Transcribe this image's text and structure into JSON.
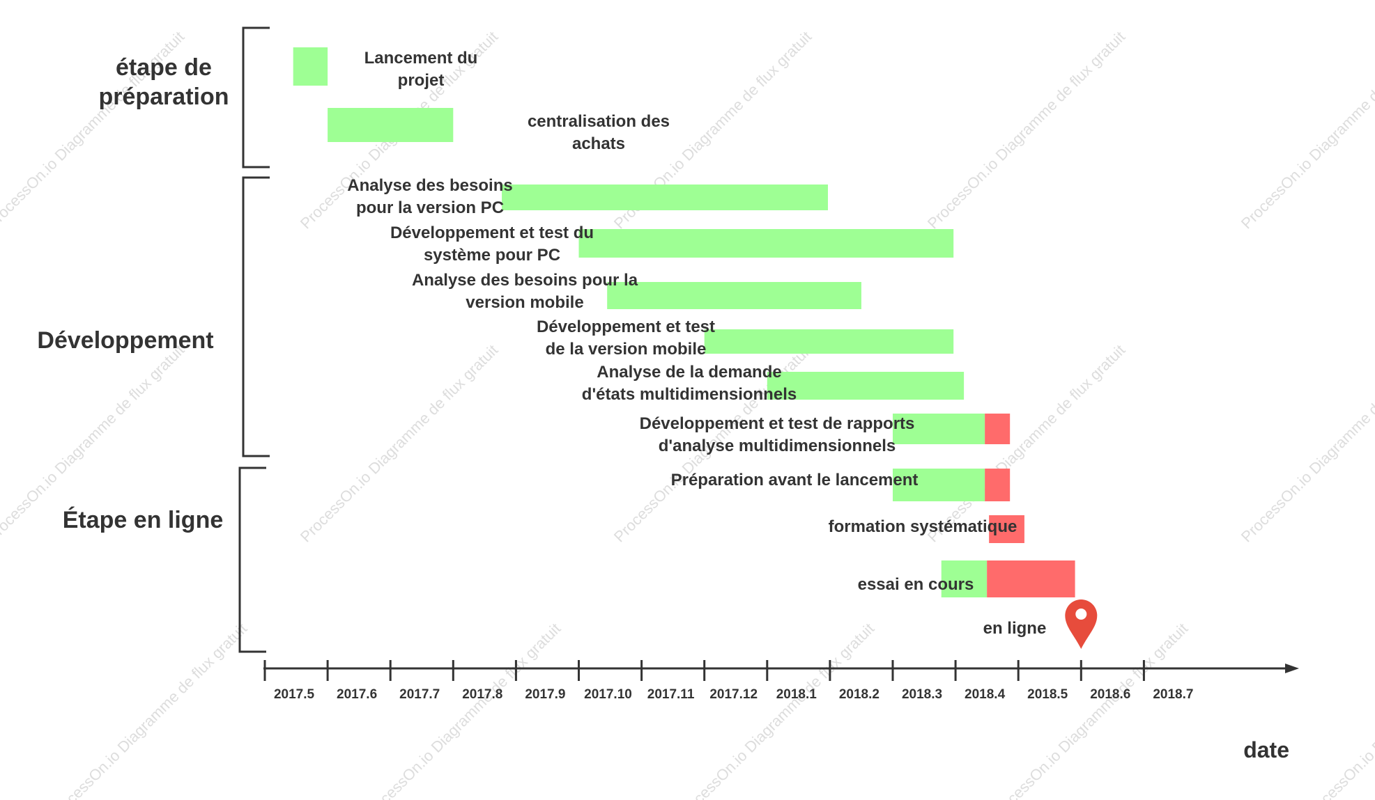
{
  "chart_data": {
    "type": "gantt",
    "xlabel": "date",
    "x_ticks": [
      "2017.5",
      "2017.6",
      "2017.7",
      "2017.8",
      "2017.9",
      "2017.10",
      "2017.11",
      "2017.12",
      "2018.1",
      "2018.2",
      "2018.3",
      "2018.4",
      "2018.5",
      "2018.6",
      "2018.7"
    ],
    "phases": [
      {
        "label": "étape de\npréparation"
      },
      {
        "label": "Développement"
      },
      {
        "label": "Étape en ligne"
      }
    ],
    "tasks": [
      {
        "label": "Lancement du\nprojet",
        "start": "2017-05-15",
        "end": "2017-06-01",
        "delay_end": null
      },
      {
        "label": "centralisation des\nachats",
        "start": "2017-06-01",
        "end": "2017-08-01",
        "delay_end": null
      },
      {
        "label": "Analyse des besoins\npour la version PC",
        "start": "2017-08-25",
        "end": "2018-01-31",
        "delay_end": null
      },
      {
        "label": "Développement et test du\nsystème pour PC",
        "start": "2017-10-01",
        "end": "2018-03-31",
        "delay_end": null
      },
      {
        "label": "Analyse des besoins pour la\nversion mobile",
        "start": "2017-10-15",
        "end": "2018-02-15",
        "delay_end": null
      },
      {
        "label": "Développement et test\nde la version mobile",
        "start": "2017-12-01",
        "end": "2018-03-31",
        "delay_end": null
      },
      {
        "label": "Analyse de la demande\nd'états multidimensionnels",
        "start": "2018-01-01",
        "end": "2018-04-05",
        "delay_end": null
      },
      {
        "label": "Développement et test de rapports\nd'analyse multidimensionnels",
        "start": "2018-03-01",
        "end": "2018-04-15",
        "delay_end": "2018-04-27"
      },
      {
        "label": "Préparation avant le lancement",
        "start": "2018-03-01",
        "end": "2018-04-15",
        "delay_end": "2018-04-27"
      },
      {
        "label": "formation systématique",
        "start": null,
        "end": null,
        "delay_start": "2018-04-17",
        "delay_end": "2018-05-04"
      },
      {
        "label": "essai en cours",
        "start": "2018-03-25",
        "end": "2018-04-16",
        "delay_end": "2018-05-29"
      }
    ],
    "milestone": {
      "label": "en ligne",
      "date": "2018-06-01"
    },
    "colors": {
      "on_time": "#9EFF94",
      "delay": "#FF6B6B",
      "milestone": "#E74C3C",
      "axis": "#333333"
    }
  },
  "watermark": "ProcessOn.io Diagramme de flux gratuit"
}
